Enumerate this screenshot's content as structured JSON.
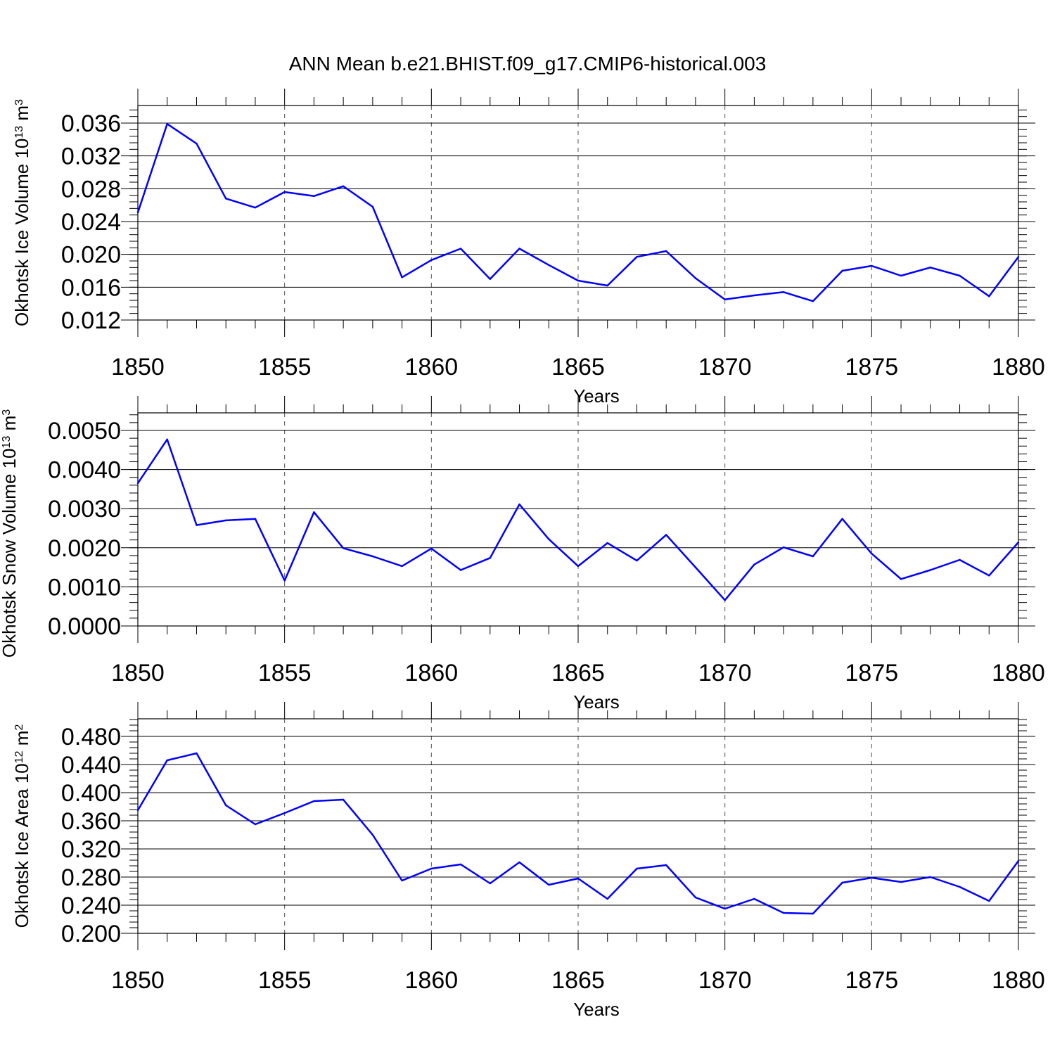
{
  "figure": {
    "title": "ANN Mean b.e21.BHIST.f09_g17.CMIP6-historical.003"
  },
  "chart_data": [
    {
      "type": "line",
      "title": "",
      "xlabel": "Years",
      "ylabel": {
        "prefix": "Okhotsk Ice Volume 10",
        "exp": "13",
        "mid": " m",
        "unit_exp": "3"
      },
      "xlim": [
        1850,
        1880
      ],
      "ylim": [
        0.012,
        0.036
      ],
      "xticks": [
        "1850",
        "1855",
        "1860",
        "1865",
        "1870",
        "1875",
        "1880"
      ],
      "yticks": [
        "0.012",
        "0.016",
        "0.020",
        "0.024",
        "0.028",
        "0.032",
        "0.036"
      ],
      "grid": "vertical dashed at major x ticks",
      "series": [
        {
          "color": "#0000ff",
          "x": [
            1850,
            1851,
            1852,
            1853,
            1854,
            1855,
            1856,
            1857,
            1858,
            1859,
            1860,
            1861,
            1862,
            1863,
            1864,
            1865,
            1866,
            1867,
            1868,
            1869,
            1870,
            1871,
            1872,
            1873,
            1874,
            1875,
            1876,
            1877,
            1878,
            1879,
            1880
          ],
          "values": [
            0.0251,
            0.0359,
            0.0335,
            0.0268,
            0.0257,
            0.0276,
            0.0271,
            0.0283,
            0.0258,
            0.0172,
            0.0193,
            0.0207,
            0.017,
            0.0207,
            0.0187,
            0.0168,
            0.0162,
            0.0197,
            0.0204,
            0.0171,
            0.0145,
            0.015,
            0.0154,
            0.0143,
            0.018,
            0.0186,
            0.0174,
            0.0184,
            0.0174,
            0.0149,
            0.0197
          ]
        }
      ]
    },
    {
      "type": "line",
      "title": "",
      "xlabel": "Years",
      "ylabel": {
        "prefix": "Okhotsk Snow Volume 10",
        "exp": "13",
        "mid": " m",
        "unit_exp": "3"
      },
      "xlim": [
        1850,
        1880
      ],
      "ylim": [
        0.0,
        0.005
      ],
      "xticks": [
        "1850",
        "1855",
        "1860",
        "1865",
        "1870",
        "1875",
        "1880"
      ],
      "yticks": [
        "0.0000",
        "0.0010",
        "0.0020",
        "0.0030",
        "0.0040",
        "0.0050"
      ],
      "grid": "vertical dashed at major x ticks",
      "series": [
        {
          "color": "#0000ff",
          "x": [
            1850,
            1851,
            1852,
            1853,
            1854,
            1855,
            1856,
            1857,
            1858,
            1859,
            1860,
            1861,
            1862,
            1863,
            1864,
            1865,
            1866,
            1867,
            1868,
            1869,
            1870,
            1871,
            1872,
            1873,
            1874,
            1875,
            1876,
            1877,
            1878,
            1879,
            1880
          ],
          "values": [
            0.00365,
            0.00477,
            0.00258,
            0.0027,
            0.00274,
            0.00116,
            0.00291,
            0.00199,
            0.00178,
            0.00153,
            0.00198,
            0.00143,
            0.00174,
            0.00311,
            0.00222,
            0.00153,
            0.00212,
            0.00167,
            0.00233,
            0.0015,
            0.00066,
            0.00157,
            0.00201,
            0.00178,
            0.00274,
            0.00185,
            0.0012,
            0.00143,
            0.00169,
            0.00129,
            0.00214
          ]
        }
      ]
    },
    {
      "type": "line",
      "title": "",
      "xlabel": "Years",
      "ylabel": {
        "prefix": "Okhotsk Ice Area 10",
        "exp": "12",
        "mid": " m",
        "unit_exp": "2"
      },
      "xlim": [
        1850,
        1880
      ],
      "ylim": [
        0.2,
        0.48
      ],
      "xticks": [
        "1850",
        "1855",
        "1860",
        "1865",
        "1870",
        "1875",
        "1880"
      ],
      "yticks": [
        "0.200",
        "0.240",
        "0.280",
        "0.320",
        "0.360",
        "0.400",
        "0.440",
        "0.480"
      ],
      "grid": "vertical dashed at major x ticks",
      "series": [
        {
          "color": "#0000ff",
          "x": [
            1850,
            1851,
            1852,
            1853,
            1854,
            1855,
            1856,
            1857,
            1858,
            1859,
            1860,
            1861,
            1862,
            1863,
            1864,
            1865,
            1866,
            1867,
            1868,
            1869,
            1870,
            1871,
            1872,
            1873,
            1874,
            1875,
            1876,
            1877,
            1878,
            1879,
            1880
          ],
          "values": [
            0.375,
            0.446,
            0.456,
            0.382,
            0.355,
            0.371,
            0.388,
            0.39,
            0.34,
            0.275,
            0.292,
            0.298,
            0.271,
            0.301,
            0.269,
            0.278,
            0.249,
            0.292,
            0.297,
            0.251,
            0.235,
            0.249,
            0.229,
            0.228,
            0.272,
            0.279,
            0.273,
            0.28,
            0.266,
            0.246,
            0.303
          ]
        }
      ]
    }
  ]
}
